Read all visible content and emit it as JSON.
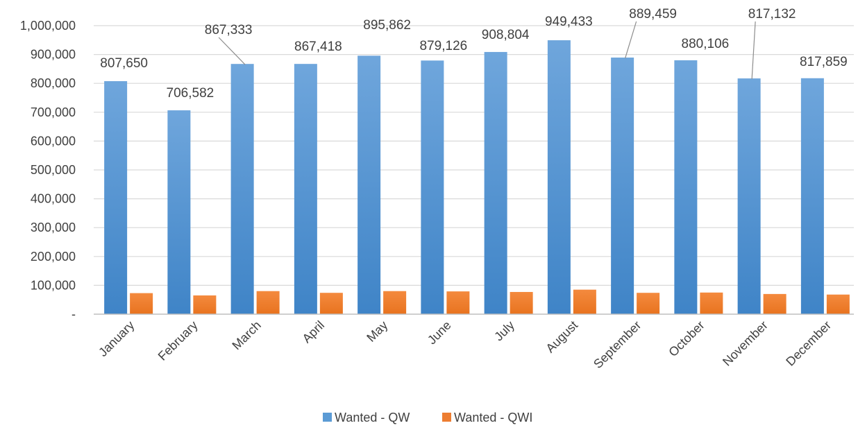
{
  "chart_data": {
    "type": "bar",
    "title": "",
    "xlabel": "",
    "ylabel": "",
    "categories": [
      "January",
      "February",
      "March",
      "April",
      "May",
      "June",
      "July",
      "August",
      "September",
      "October",
      "November",
      "December"
    ],
    "series": [
      {
        "name": "Wanted - QW",
        "color": "#5B9BD5",
        "values": [
          807650,
          706582,
          867333,
          867418,
          895862,
          879126,
          908804,
          949433,
          889459,
          880106,
          817132,
          817859
        ],
        "data_labels": [
          "807,650",
          "706,582",
          "867,333",
          "867,418",
          "895,862",
          "879,126",
          "908,804",
          "949,433",
          "889,459",
          "880,106",
          "817,132",
          "817,859"
        ]
      },
      {
        "name": "Wanted - QWI",
        "color": "#ED7D31",
        "values": [
          73000,
          65000,
          80000,
          74000,
          80000,
          79000,
          77000,
          85000,
          74000,
          75000,
          70000,
          68000
        ]
      }
    ],
    "ylim": [
      0,
      1000000
    ],
    "y_ticks": [
      0,
      100000,
      200000,
      300000,
      400000,
      500000,
      600000,
      700000,
      800000,
      900000,
      1000000
    ],
    "y_tick_labels": [
      "-",
      "100,000",
      "200,000",
      "300,000",
      "400,000",
      "500,000",
      "600,000",
      "700,000",
      "800,000",
      "900,000",
      "1,000,000"
    ],
    "grid": true,
    "legend_position": "bottom"
  }
}
